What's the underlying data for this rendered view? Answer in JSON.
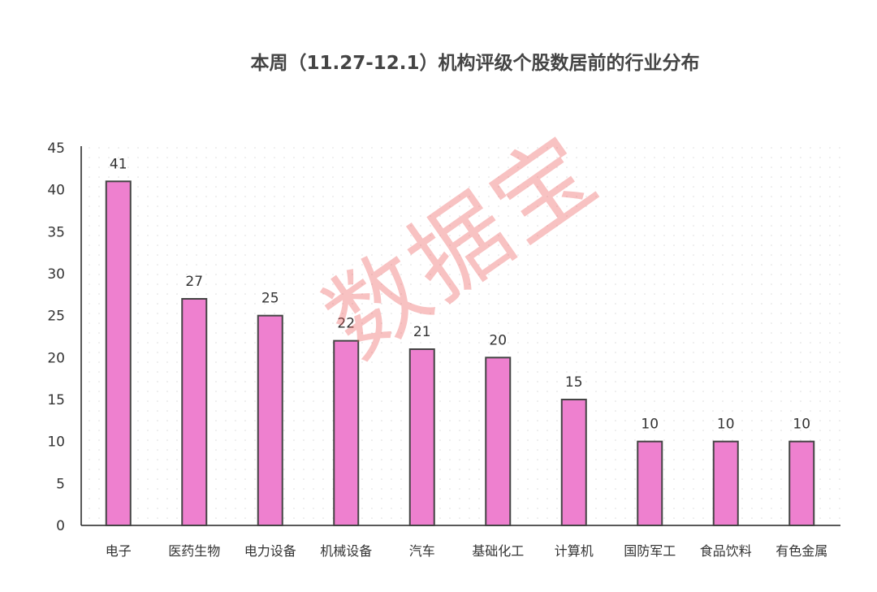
{
  "chart_data": {
    "type": "bar",
    "title": "本周（11.27-12.1）机构评级个股数居前的行业分布",
    "categories": [
      "电子",
      "医药生物",
      "电力设备",
      "机械设备",
      "汽车",
      "基础化工",
      "计算机",
      "国防军工",
      "食品饮料",
      "有色金属"
    ],
    "values": [
      41,
      27,
      25,
      22,
      21,
      20,
      15,
      10,
      10,
      10
    ],
    "xlabel": "",
    "ylabel": "",
    "ylim": [
      0,
      45
    ],
    "yticks": [
      0,
      5,
      10,
      15,
      20,
      25,
      30,
      35,
      40,
      45
    ],
    "grid": false,
    "bar_color": "#ee80cf",
    "bar_border": "#444444"
  },
  "watermark": "数据宝"
}
